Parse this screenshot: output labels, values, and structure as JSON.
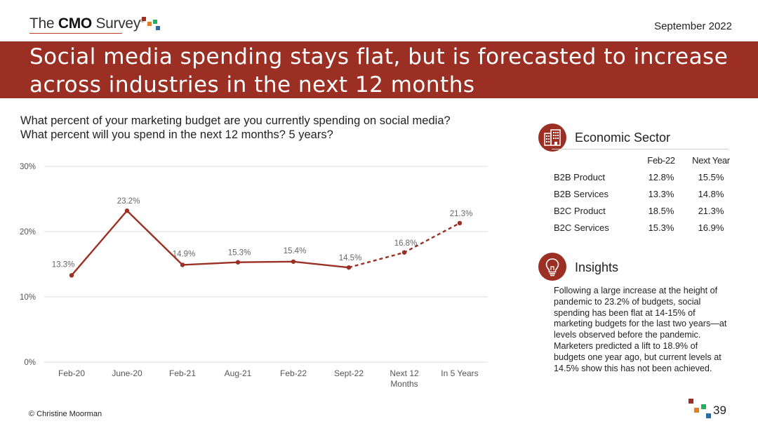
{
  "header": {
    "logo_prefix": "The ",
    "logo_bold": "CMO",
    "logo_suffix": " Survey",
    "logo_mark": "®",
    "date": "September 2022"
  },
  "banner": {
    "title_line1": "Social media spending stays flat, but is forecasted to increase",
    "title_line2": "across industries in the next 12 months"
  },
  "question": {
    "line1": "What percent of your marketing budget are you currently spending on social media?",
    "line2": "What percent will you spend in the next 12 months? 5 years?"
  },
  "chart_data": {
    "type": "line",
    "categories": [
      "Feb-20",
      "June-20",
      "Feb-21",
      "Aug-21",
      "Feb-22",
      "Sept-22",
      "Next 12 Months",
      "In 5 Years"
    ],
    "x_tick_lines": [
      [
        "Feb-20"
      ],
      [
        "June-20"
      ],
      [
        "Feb-21"
      ],
      [
        "Aug-21"
      ],
      [
        "Feb-22"
      ],
      [
        "Sept-22"
      ],
      [
        "Next 12",
        "Months"
      ],
      [
        "In 5 Years"
      ]
    ],
    "values": [
      13.3,
      23.2,
      14.9,
      15.3,
      15.4,
      14.5,
      16.8,
      21.3
    ],
    "data_labels": [
      "13.3%",
      "23.2%",
      "14.9%",
      "15.3%",
      "15.4%",
      "14.5%",
      "16.8%",
      "21.3%"
    ],
    "forecast_from_index": 5,
    "ylim": [
      0,
      30
    ],
    "yticks": [
      0,
      10,
      20,
      30
    ],
    "ytick_labels": [
      "0%",
      "10%",
      "20%",
      "30%"
    ],
    "grid": true,
    "line_color": "#9b2f23",
    "title": "",
    "xlabel": "",
    "ylabel": ""
  },
  "sector_panel": {
    "title": "Economic Sector",
    "icon": "building-icon",
    "columns": [
      "Feb-22",
      "Next Year"
    ],
    "rows": [
      {
        "label": "B2B Product",
        "feb22": "12.8%",
        "next_year": "15.5%"
      },
      {
        "label": "B2B Services",
        "feb22": "13.3%",
        "next_year": "14.8%"
      },
      {
        "label": "B2C Product",
        "feb22": "18.5%",
        "next_year": "21.3%"
      },
      {
        "label": "B2C Services",
        "feb22": "15.3%",
        "next_year": "16.9%"
      }
    ]
  },
  "insights_panel": {
    "title": "Insights",
    "icon": "lightbulb-icon",
    "text": "Following a large increase at the height of pandemic to 23.2% of budgets, social spending has been flat at 14-15% of marketing budgets for the last two years—at levels observed before the pandemic. Marketers predicted a lift to 18.9% of budgets one year ago, but current levels at 14.5% show this has not been achieved."
  },
  "footer": {
    "copyright": "© Christine Moorman",
    "page_number": "39"
  },
  "colors": {
    "brand_red": "#9b2f23",
    "accent_orange": "#e67e22",
    "accent_green": "#27ae60",
    "accent_blue": "#2e6da4"
  }
}
